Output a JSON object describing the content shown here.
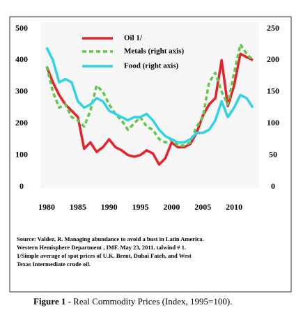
{
  "chart_data": {
    "type": "line",
    "x": [
      1980,
      1981,
      1982,
      1983,
      1984,
      1985,
      1986,
      1987,
      1988,
      1989,
      1990,
      1991,
      1992,
      1993,
      1994,
      1995,
      1996,
      1997,
      1998,
      1999,
      2000,
      2001,
      2002,
      2003,
      2004,
      2005,
      2006,
      2007,
      2008,
      2009,
      2010,
      2011,
      2012,
      2013
    ],
    "xlim": [
      1979,
      2014
    ],
    "xticks": [
      1980,
      1985,
      1990,
      1995,
      2000,
      2005,
      2010
    ],
    "ylim": [
      0,
      500
    ],
    "yticks": [
      0,
      100,
      200,
      300,
      400,
      500
    ],
    "y2lim": [
      0,
      250
    ],
    "y2ticks": [
      0,
      50,
      100,
      150,
      200,
      250
    ],
    "grid": false,
    "legend": "top",
    "series": [
      {
        "name": "Oil 1/",
        "color": "#e8202a",
        "dash": "solid",
        "values": [
          380,
          330,
          290,
          260,
          240,
          220,
          120,
          140,
          110,
          125,
          150,
          125,
          115,
          100,
          95,
          100,
          115,
          105,
          70,
          90,
          140,
          125,
          125,
          135,
          170,
          225,
          260,
          280,
          400,
          255,
          320,
          420,
          410,
          400
        ]
      },
      {
        "name": "Metals (right axis)",
        "color": "#5fc84a",
        "dash": "dashed",
        "axis": "y2",
        "values": [
          190,
          150,
          125,
          130,
          110,
          105,
          95,
          120,
          160,
          150,
          130,
          115,
          105,
          90,
          100,
          110,
          95,
          90,
          75,
          70,
          75,
          65,
          65,
          70,
          95,
          110,
          165,
          180,
          150,
          130,
          180,
          225,
          210,
          200
        ]
      },
      {
        "name": "Food (right axis)",
        "color": "#2fd3e8",
        "dash": "solid",
        "axis": "y2",
        "values": [
          220,
          200,
          165,
          170,
          165,
          135,
          125,
          130,
          140,
          135,
          120,
          115,
          110,
          105,
          110,
          110,
          115,
          105,
          90,
          80,
          75,
          70,
          70,
          75,
          85,
          85,
          90,
          105,
          135,
          110,
          125,
          145,
          140,
          125
        ]
      }
    ],
    "source": [
      "Source: Valdez, R.  Managing abundance to avoid a bust in Latin America.",
      "Western Hemisphere Department , IMF. May 23, 2011.  talwind # 1.",
      "1/Simple average  of spot prices of U.K. Brent, Dubai Fateh, and West",
      "Texas Intermediate crude oil."
    ],
    "caption": {
      "label": "Figure 1",
      "text": "- Real Commodity Prices (Index, 1995=100)."
    }
  }
}
